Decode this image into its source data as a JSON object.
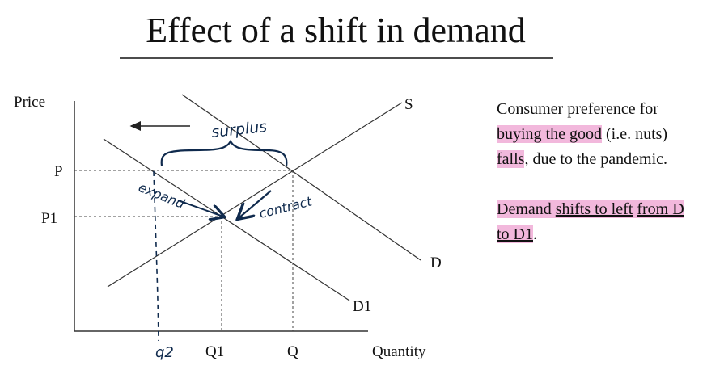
{
  "title": "Effect of a shift in demand",
  "graph": {
    "y_axis_label": "Price",
    "x_axis_label": "Quantity",
    "price_labels": [
      "P",
      "P1"
    ],
    "quantity_labels": [
      "q2",
      "Q1",
      "Q"
    ],
    "curve_labels": {
      "supply": "S",
      "demand": "D",
      "new_demand": "D1"
    },
    "annotations": {
      "surplus": "surplus",
      "expand": "expand",
      "contract": "contract"
    }
  },
  "notes": {
    "paragraph1": [
      "Consumer preference for",
      "buying the good",
      "(i.e. nuts)",
      "falls",
      ", due to the pandemic."
    ],
    "paragraph2": [
      "Demand",
      "shifts to left",
      "from D to D1",
      "."
    ]
  }
}
